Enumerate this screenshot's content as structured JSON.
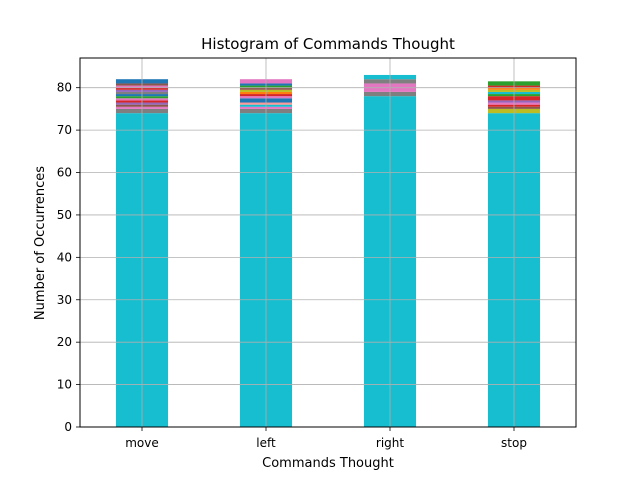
{
  "chart_data": {
    "type": "bar",
    "title": "Histogram of Commands Thought",
    "xlabel": "Commands Thought",
    "ylabel": "Number of Occurrences",
    "categories": [
      "move",
      "left",
      "right",
      "stop"
    ],
    "ylim": [
      0,
      87
    ],
    "yticks": [
      0,
      10,
      20,
      30,
      40,
      50,
      60,
      70,
      80
    ],
    "grid": true,
    "stacked": true,
    "stacks": [
      {
        "category": "move",
        "segments": [
          {
            "value": 74,
            "color": "#17becf"
          },
          {
            "value": 1,
            "color": "#7f7f7f"
          },
          {
            "value": 0.5,
            "color": "#e377c2"
          },
          {
            "value": 0.5,
            "color": "#8c564b"
          },
          {
            "value": 0.5,
            "color": "#9467bd"
          },
          {
            "value": 0.5,
            "color": "#d62728"
          },
          {
            "value": 0.5,
            "color": "#e377c2"
          },
          {
            "value": 0.5,
            "color": "#2ca02c"
          },
          {
            "value": 0.5,
            "color": "#1f77b4"
          },
          {
            "value": 0.5,
            "color": "#7f7f7f"
          },
          {
            "value": 0.5,
            "color": "#9467bd"
          },
          {
            "value": 0.5,
            "color": "#d62728"
          },
          {
            "value": 0.5,
            "color": "#e377c2"
          },
          {
            "value": 0.5,
            "color": "#8c564b"
          },
          {
            "value": 1,
            "color": "#1f77b4"
          }
        ]
      },
      {
        "category": "left",
        "segments": [
          {
            "value": 74,
            "color": "#17becf"
          },
          {
            "value": 1,
            "color": "#7f7f7f"
          },
          {
            "value": 0.5,
            "color": "#e377c2"
          },
          {
            "value": 0.5,
            "color": "#17becf"
          },
          {
            "value": 0.5,
            "color": "#ff9896"
          },
          {
            "value": 1,
            "color": "#1f77b4"
          },
          {
            "value": 0.5,
            "color": "#e377c2"
          },
          {
            "value": 0.5,
            "color": "#d62728"
          },
          {
            "value": 0.5,
            "color": "#ff7f0e"
          },
          {
            "value": 0.5,
            "color": "#bcbd22"
          },
          {
            "value": 0.5,
            "color": "#8c564b"
          },
          {
            "value": 0.5,
            "color": "#2ca02c"
          },
          {
            "value": 0.5,
            "color": "#1f77b4"
          },
          {
            "value": 1,
            "color": "#e377c2"
          }
        ]
      },
      {
        "category": "right",
        "segments": [
          {
            "value": 78,
            "color": "#17becf"
          },
          {
            "value": 1,
            "color": "#7f7f7f"
          },
          {
            "value": 1,
            "color": "#e377c2"
          },
          {
            "value": 1,
            "color": "#e377c2"
          },
          {
            "value": 1,
            "color": "#7f7f7f"
          },
          {
            "value": 1,
            "color": "#17becf"
          }
        ]
      },
      {
        "category": "stop",
        "segments": [
          {
            "value": 74,
            "color": "#17becf"
          },
          {
            "value": 1,
            "color": "#bcbd22"
          },
          {
            "value": 0.5,
            "color": "#8c564b"
          },
          {
            "value": 0.5,
            "color": "#d62728"
          },
          {
            "value": 0.5,
            "color": "#e377c2"
          },
          {
            "value": 0.5,
            "color": "#9467bd"
          },
          {
            "value": 1,
            "color": "#d62728"
          },
          {
            "value": 0.5,
            "color": "#2ca02c"
          },
          {
            "value": 0.5,
            "color": "#17becf"
          },
          {
            "value": 0.5,
            "color": "#bcbd22"
          },
          {
            "value": 0.5,
            "color": "#ff7f0e"
          },
          {
            "value": 0.5,
            "color": "#d62728"
          },
          {
            "value": 1,
            "color": "#2ca02c"
          }
        ]
      }
    ]
  }
}
